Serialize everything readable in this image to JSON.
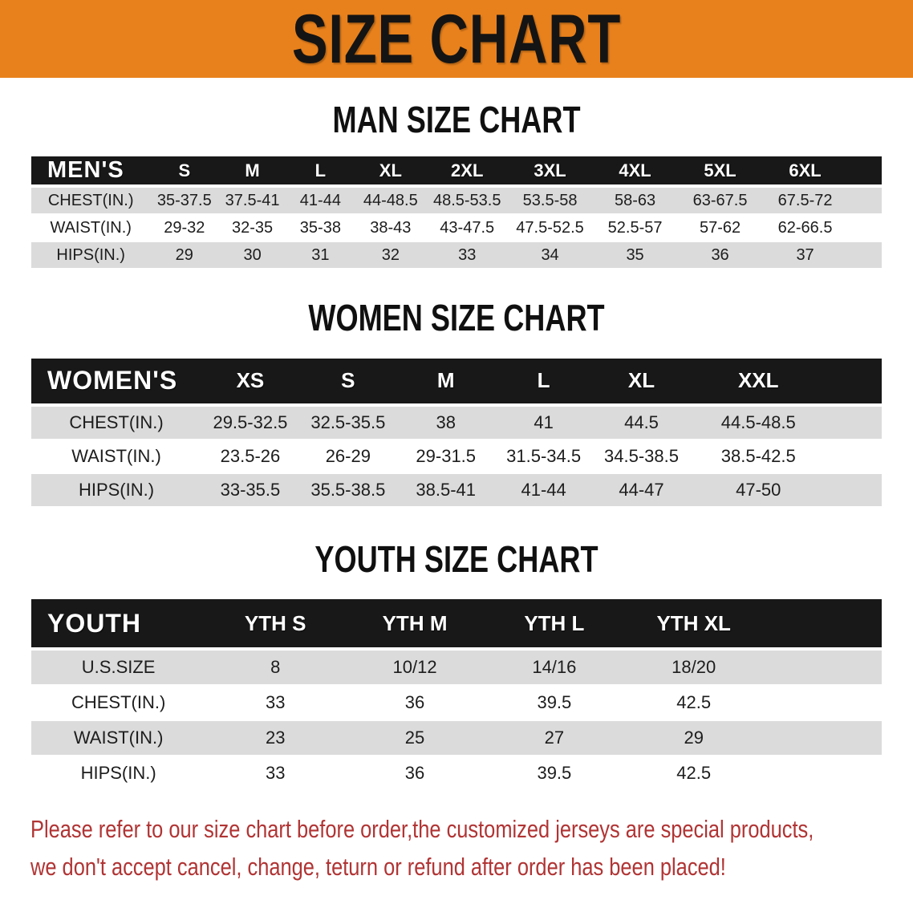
{
  "banner": {
    "title": "SIZE CHART"
  },
  "sections": [
    {
      "heading": "MAN SIZE CHART",
      "table": {
        "header_label": "MEN'S",
        "columns": [
          "S",
          "M",
          "L",
          "XL",
          "2XL",
          "3XL",
          "4XL",
          "5XL",
          "6XL"
        ],
        "rows": [
          {
            "label": "CHEST(IN.)",
            "values": [
              "35-37.5",
              "37.5-41",
              "41-44",
              "44-48.5",
              "48.5-53.5",
              "53.5-58",
              "58-63",
              "63-67.5",
              "67.5-72"
            ]
          },
          {
            "label": "WAIST(IN.)",
            "values": [
              "29-32",
              "32-35",
              "35-38",
              "38-43",
              "43-47.5",
              "47.5-52.5",
              "52.5-57",
              "57-62",
              "62-66.5"
            ]
          },
          {
            "label": "HIPS(IN.)",
            "values": [
              "29",
              "30",
              "31",
              "32",
              "33",
              "34",
              "35",
              "36",
              "37"
            ]
          }
        ]
      }
    },
    {
      "heading": "WOMEN SIZE CHART",
      "table": {
        "header_label": "WOMEN'S",
        "columns": [
          "XS",
          "S",
          "M",
          "L",
          "XL",
          "XXL"
        ],
        "rows": [
          {
            "label": "CHEST(IN.)",
            "values": [
              "29.5-32.5",
              "32.5-35.5",
              "38",
              "41",
              "44.5",
              "44.5-48.5"
            ]
          },
          {
            "label": "WAIST(IN.)",
            "values": [
              "23.5-26",
              "26-29",
              "29-31.5",
              "31.5-34.5",
              "34.5-38.5",
              "38.5-42.5"
            ]
          },
          {
            "label": "HIPS(IN.)",
            "values": [
              "33-35.5",
              "35.5-38.5",
              "38.5-41",
              "41-44",
              "44-47",
              "47-50"
            ]
          }
        ]
      }
    },
    {
      "heading": "YOUTH SIZE CHART",
      "table": {
        "header_label": "YOUTH",
        "columns": [
          "YTH S",
          "YTH M",
          "YTH L",
          "YTH XL"
        ],
        "rows": [
          {
            "label": "U.S.SIZE",
            "values": [
              "8",
              "10/12",
              "14/16",
              "18/20"
            ]
          },
          {
            "label": "CHEST(IN.)",
            "values": [
              "33",
              "36",
              "39.5",
              "42.5"
            ]
          },
          {
            "label": "WAIST(IN.)",
            "values": [
              "23",
              "25",
              "27",
              "29"
            ]
          },
          {
            "label": "HIPS(IN.)",
            "values": [
              "33",
              "36",
              "39.5",
              "42.5"
            ]
          }
        ]
      }
    }
  ],
  "footer": {
    "line1": "Please refer to our size chart before order,the customized jerseys are special products,",
    "line2": "we don't accept cancel, change, teturn or refund after order has been placed!"
  },
  "theme": {
    "banner_bg": "#e8811c",
    "banner_text": "#141414",
    "table_header_bg": "#181818",
    "table_header_text": "#ffffff",
    "row_shade": "#dbdbdb",
    "row_text": "#1d1d1d",
    "footer_text": "#b13434"
  }
}
